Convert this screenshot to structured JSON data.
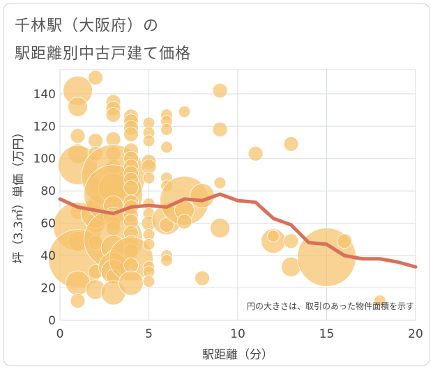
{
  "title": {
    "line1": "千林駅（大阪府）の",
    "line2": "駅距離別中古戸建て価格"
  },
  "chart_data": {
    "type": "scatter",
    "xlabel": "駅距離（分）",
    "ylabel": "坪（3.3㎡）単価（万円）",
    "xlim": [
      0,
      20
    ],
    "ylim": [
      0,
      155
    ],
    "xticks": [
      0,
      5,
      10,
      15,
      20
    ],
    "yticks": [
      0,
      20,
      40,
      60,
      80,
      100,
      120,
      140
    ],
    "grid": true,
    "note": "円の大きさは、取引のあった物件面積を示す",
    "colors": {
      "bubble": "#f5c26b",
      "bubble_stroke": "#ffffff",
      "trend": "#d9705a",
      "grid": "#d5dde5",
      "axis_text": "#444444"
    },
    "bubbles": [
      {
        "x": 1,
        "y": 142,
        "s": 3
      },
      {
        "x": 1,
        "y": 132,
        "s": 2
      },
      {
        "x": 1,
        "y": 114,
        "s": 1.5
      },
      {
        "x": 1,
        "y": 103,
        "s": 2
      },
      {
        "x": 1,
        "y": 96,
        "s": 4
      },
      {
        "x": 1,
        "y": 67,
        "s": 1.5
      },
      {
        "x": 1,
        "y": 58,
        "s": 5
      },
      {
        "x": 1,
        "y": 49,
        "s": 2
      },
      {
        "x": 1,
        "y": 38,
        "s": 6
      },
      {
        "x": 1,
        "y": 23,
        "s": 2.5
      },
      {
        "x": 1,
        "y": 12,
        "s": 1.5
      },
      {
        "x": 2,
        "y": 150,
        "s": 1.5
      },
      {
        "x": 2,
        "y": 111,
        "s": 1.5
      },
      {
        "x": 2,
        "y": 103,
        "s": 1.5
      },
      {
        "x": 2,
        "y": 83,
        "s": 1.5
      },
      {
        "x": 2,
        "y": 73,
        "s": 1.5
      },
      {
        "x": 2,
        "y": 60,
        "s": 2
      },
      {
        "x": 2,
        "y": 48,
        "s": 1.5
      },
      {
        "x": 2,
        "y": 30,
        "s": 1.5
      },
      {
        "x": 2,
        "y": 19,
        "s": 2
      },
      {
        "x": 2,
        "y": 66,
        "s": 3
      },
      {
        "x": 3,
        "y": 135,
        "s": 1.5
      },
      {
        "x": 3,
        "y": 131,
        "s": 1.5
      },
      {
        "x": 3,
        "y": 127,
        "s": 1.5
      },
      {
        "x": 3,
        "y": 112,
        "s": 1.5
      },
      {
        "x": 3,
        "y": 103,
        "s": 1.5
      },
      {
        "x": 3,
        "y": 95,
        "s": 1.5
      },
      {
        "x": 3,
        "y": 89,
        "s": 6.5
      },
      {
        "x": 3,
        "y": 82,
        "s": 3
      },
      {
        "x": 3,
        "y": 78,
        "s": 6
      },
      {
        "x": 3,
        "y": 71,
        "s": 2
      },
      {
        "x": 3,
        "y": 64,
        "s": 2
      },
      {
        "x": 3,
        "y": 60,
        "s": 1.5
      },
      {
        "x": 3,
        "y": 57,
        "s": 1.5
      },
      {
        "x": 3,
        "y": 50,
        "s": 6
      },
      {
        "x": 3,
        "y": 45,
        "s": 2.5
      },
      {
        "x": 3,
        "y": 39,
        "s": 1.5
      },
      {
        "x": 3,
        "y": 33,
        "s": 3
      },
      {
        "x": 3,
        "y": 30,
        "s": 2.5
      },
      {
        "x": 3,
        "y": 27,
        "s": 1.5
      },
      {
        "x": 3,
        "y": 17,
        "s": 2.5
      },
      {
        "x": 4,
        "y": 126,
        "s": 1.5
      },
      {
        "x": 4,
        "y": 123,
        "s": 1.5
      },
      {
        "x": 4,
        "y": 119,
        "s": 1.5
      },
      {
        "x": 4,
        "y": 115,
        "s": 1.5
      },
      {
        "x": 4,
        "y": 105,
        "s": 1.5
      },
      {
        "x": 4,
        "y": 100,
        "s": 1.5
      },
      {
        "x": 4,
        "y": 95,
        "s": 1.5
      },
      {
        "x": 4,
        "y": 91,
        "s": 1.5
      },
      {
        "x": 4,
        "y": 87,
        "s": 1.5
      },
      {
        "x": 4,
        "y": 82,
        "s": 1.5
      },
      {
        "x": 4,
        "y": 73,
        "s": 1.5
      },
      {
        "x": 4,
        "y": 70,
        "s": 1.5
      },
      {
        "x": 4,
        "y": 65,
        "s": 1.5
      },
      {
        "x": 4,
        "y": 61,
        "s": 1.5
      },
      {
        "x": 4,
        "y": 54,
        "s": 1.5
      },
      {
        "x": 4,
        "y": 48,
        "s": 1.5
      },
      {
        "x": 4,
        "y": 43,
        "s": 1.5
      },
      {
        "x": 4,
        "y": 38,
        "s": 4.5
      },
      {
        "x": 4,
        "y": 34,
        "s": 1.5
      },
      {
        "x": 4,
        "y": 23,
        "s": 2.5
      },
      {
        "x": 5,
        "y": 122,
        "s": 1.2
      },
      {
        "x": 5,
        "y": 116,
        "s": 1.2
      },
      {
        "x": 5,
        "y": 111,
        "s": 1.2
      },
      {
        "x": 5,
        "y": 98,
        "s": 1.5
      },
      {
        "x": 5,
        "y": 95,
        "s": 1.5
      },
      {
        "x": 5,
        "y": 88,
        "s": 1.2
      },
      {
        "x": 5,
        "y": 72,
        "s": 1.2
      },
      {
        "x": 5,
        "y": 66,
        "s": 1.2
      },
      {
        "x": 5,
        "y": 60,
        "s": 1.5
      },
      {
        "x": 5,
        "y": 53,
        "s": 1.2
      },
      {
        "x": 5,
        "y": 47,
        "s": 1.2
      },
      {
        "x": 5,
        "y": 33,
        "s": 1.2
      },
      {
        "x": 5,
        "y": 30,
        "s": 1.2
      },
      {
        "x": 5,
        "y": 24,
        "s": 1.2
      },
      {
        "x": 6,
        "y": 127,
        "s": 1.2
      },
      {
        "x": 6,
        "y": 123,
        "s": 1.2
      },
      {
        "x": 6,
        "y": 118,
        "s": 1.2
      },
      {
        "x": 6,
        "y": 107,
        "s": 1.2
      },
      {
        "x": 6,
        "y": 88,
        "s": 1.2
      },
      {
        "x": 6,
        "y": 83,
        "s": 1.2
      },
      {
        "x": 6,
        "y": 69,
        "s": 1.2
      },
      {
        "x": 6,
        "y": 62,
        "s": 3
      },
      {
        "x": 6,
        "y": 59,
        "s": 1.5
      },
      {
        "x": 6,
        "y": 40,
        "s": 1.2
      },
      {
        "x": 6,
        "y": 37,
        "s": 1.2
      },
      {
        "x": 7,
        "y": 129,
        "s": 1.2
      },
      {
        "x": 7,
        "y": 74,
        "s": 5
      },
      {
        "x": 7,
        "y": 68,
        "s": 2
      },
      {
        "x": 7,
        "y": 61,
        "s": 1.5
      },
      {
        "x": 8,
        "y": 77,
        "s": 2.5
      },
      {
        "x": 8,
        "y": 26,
        "s": 1.5
      },
      {
        "x": 9,
        "y": 142,
        "s": 1.5
      },
      {
        "x": 9,
        "y": 118,
        "s": 1.5
      },
      {
        "x": 9,
        "y": 85,
        "s": 1.2
      },
      {
        "x": 9,
        "y": 57,
        "s": 2
      },
      {
        "x": 11,
        "y": 103,
        "s": 1.5
      },
      {
        "x": 12,
        "y": 49,
        "s": 2.5
      },
      {
        "x": 12,
        "y": 52,
        "s": 1.2
      },
      {
        "x": 13,
        "y": 109,
        "s": 1.5
      },
      {
        "x": 13,
        "y": 49,
        "s": 1.5
      },
      {
        "x": 13,
        "y": 33,
        "s": 2
      },
      {
        "x": 15,
        "y": 39,
        "s": 6
      },
      {
        "x": 16,
        "y": 49,
        "s": 1.5
      },
      {
        "x": 18,
        "y": 12,
        "s": 1.2
      }
    ],
    "trend": {
      "x": [
        0,
        1,
        2,
        3,
        4,
        5,
        6,
        7,
        8,
        9,
        10,
        11,
        12,
        13,
        14,
        15,
        16,
        17,
        18,
        19,
        20
      ],
      "y": [
        75,
        70,
        68,
        66,
        70,
        71,
        70,
        75,
        74,
        78,
        74,
        73,
        63,
        59,
        48,
        47,
        40,
        38,
        38,
        36,
        33
      ]
    }
  }
}
